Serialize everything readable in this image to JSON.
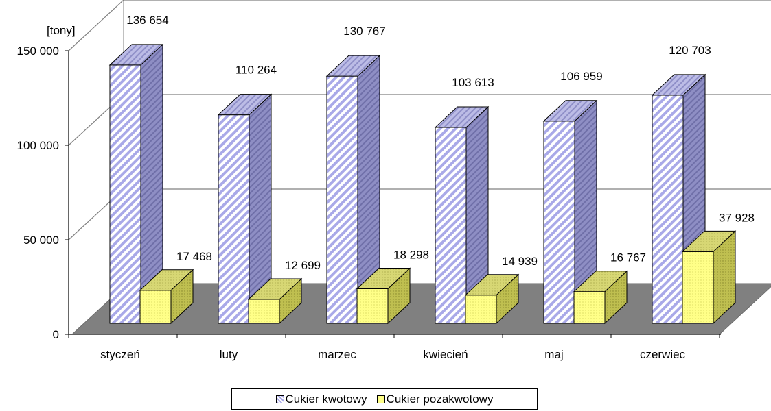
{
  "chart_data": {
    "type": "bar",
    "title": "",
    "xlabel": "",
    "ylabel": "[tony]",
    "categories": [
      "styczeń",
      "luty",
      "marzec",
      "kwiecień",
      "maj",
      "czerwiec"
    ],
    "series": [
      {
        "name": "Cukier kwotowy",
        "values": [
          136654,
          110264,
          130767,
          103613,
          106959,
          120703
        ],
        "labels": [
          "136 654",
          "110 264",
          "130 767",
          "103 613",
          "106 959",
          "120 703"
        ],
        "color": "#c8c8f0"
      },
      {
        "name": "Cukier pozakwotowy",
        "values": [
          17468,
          12699,
          18298,
          14939,
          16767,
          37928
        ],
        "labels": [
          "17 468",
          "12 699",
          "18 298",
          "14 939",
          "16 767",
          "37 928"
        ],
        "color": "#ffff99"
      }
    ],
    "ylim": [
      0,
      150000
    ],
    "yticks": [
      0,
      50000,
      100000,
      150000
    ],
    "ytick_labels": [
      "0",
      "50 000",
      "100 000",
      "150 000"
    ],
    "grid": true,
    "legend_position": "bottom",
    "style": "3d-clustered-column"
  },
  "legend": {
    "items": [
      {
        "label": "Cukier kwotowy"
      },
      {
        "label": "Cukier pozakwotowy"
      }
    ]
  }
}
